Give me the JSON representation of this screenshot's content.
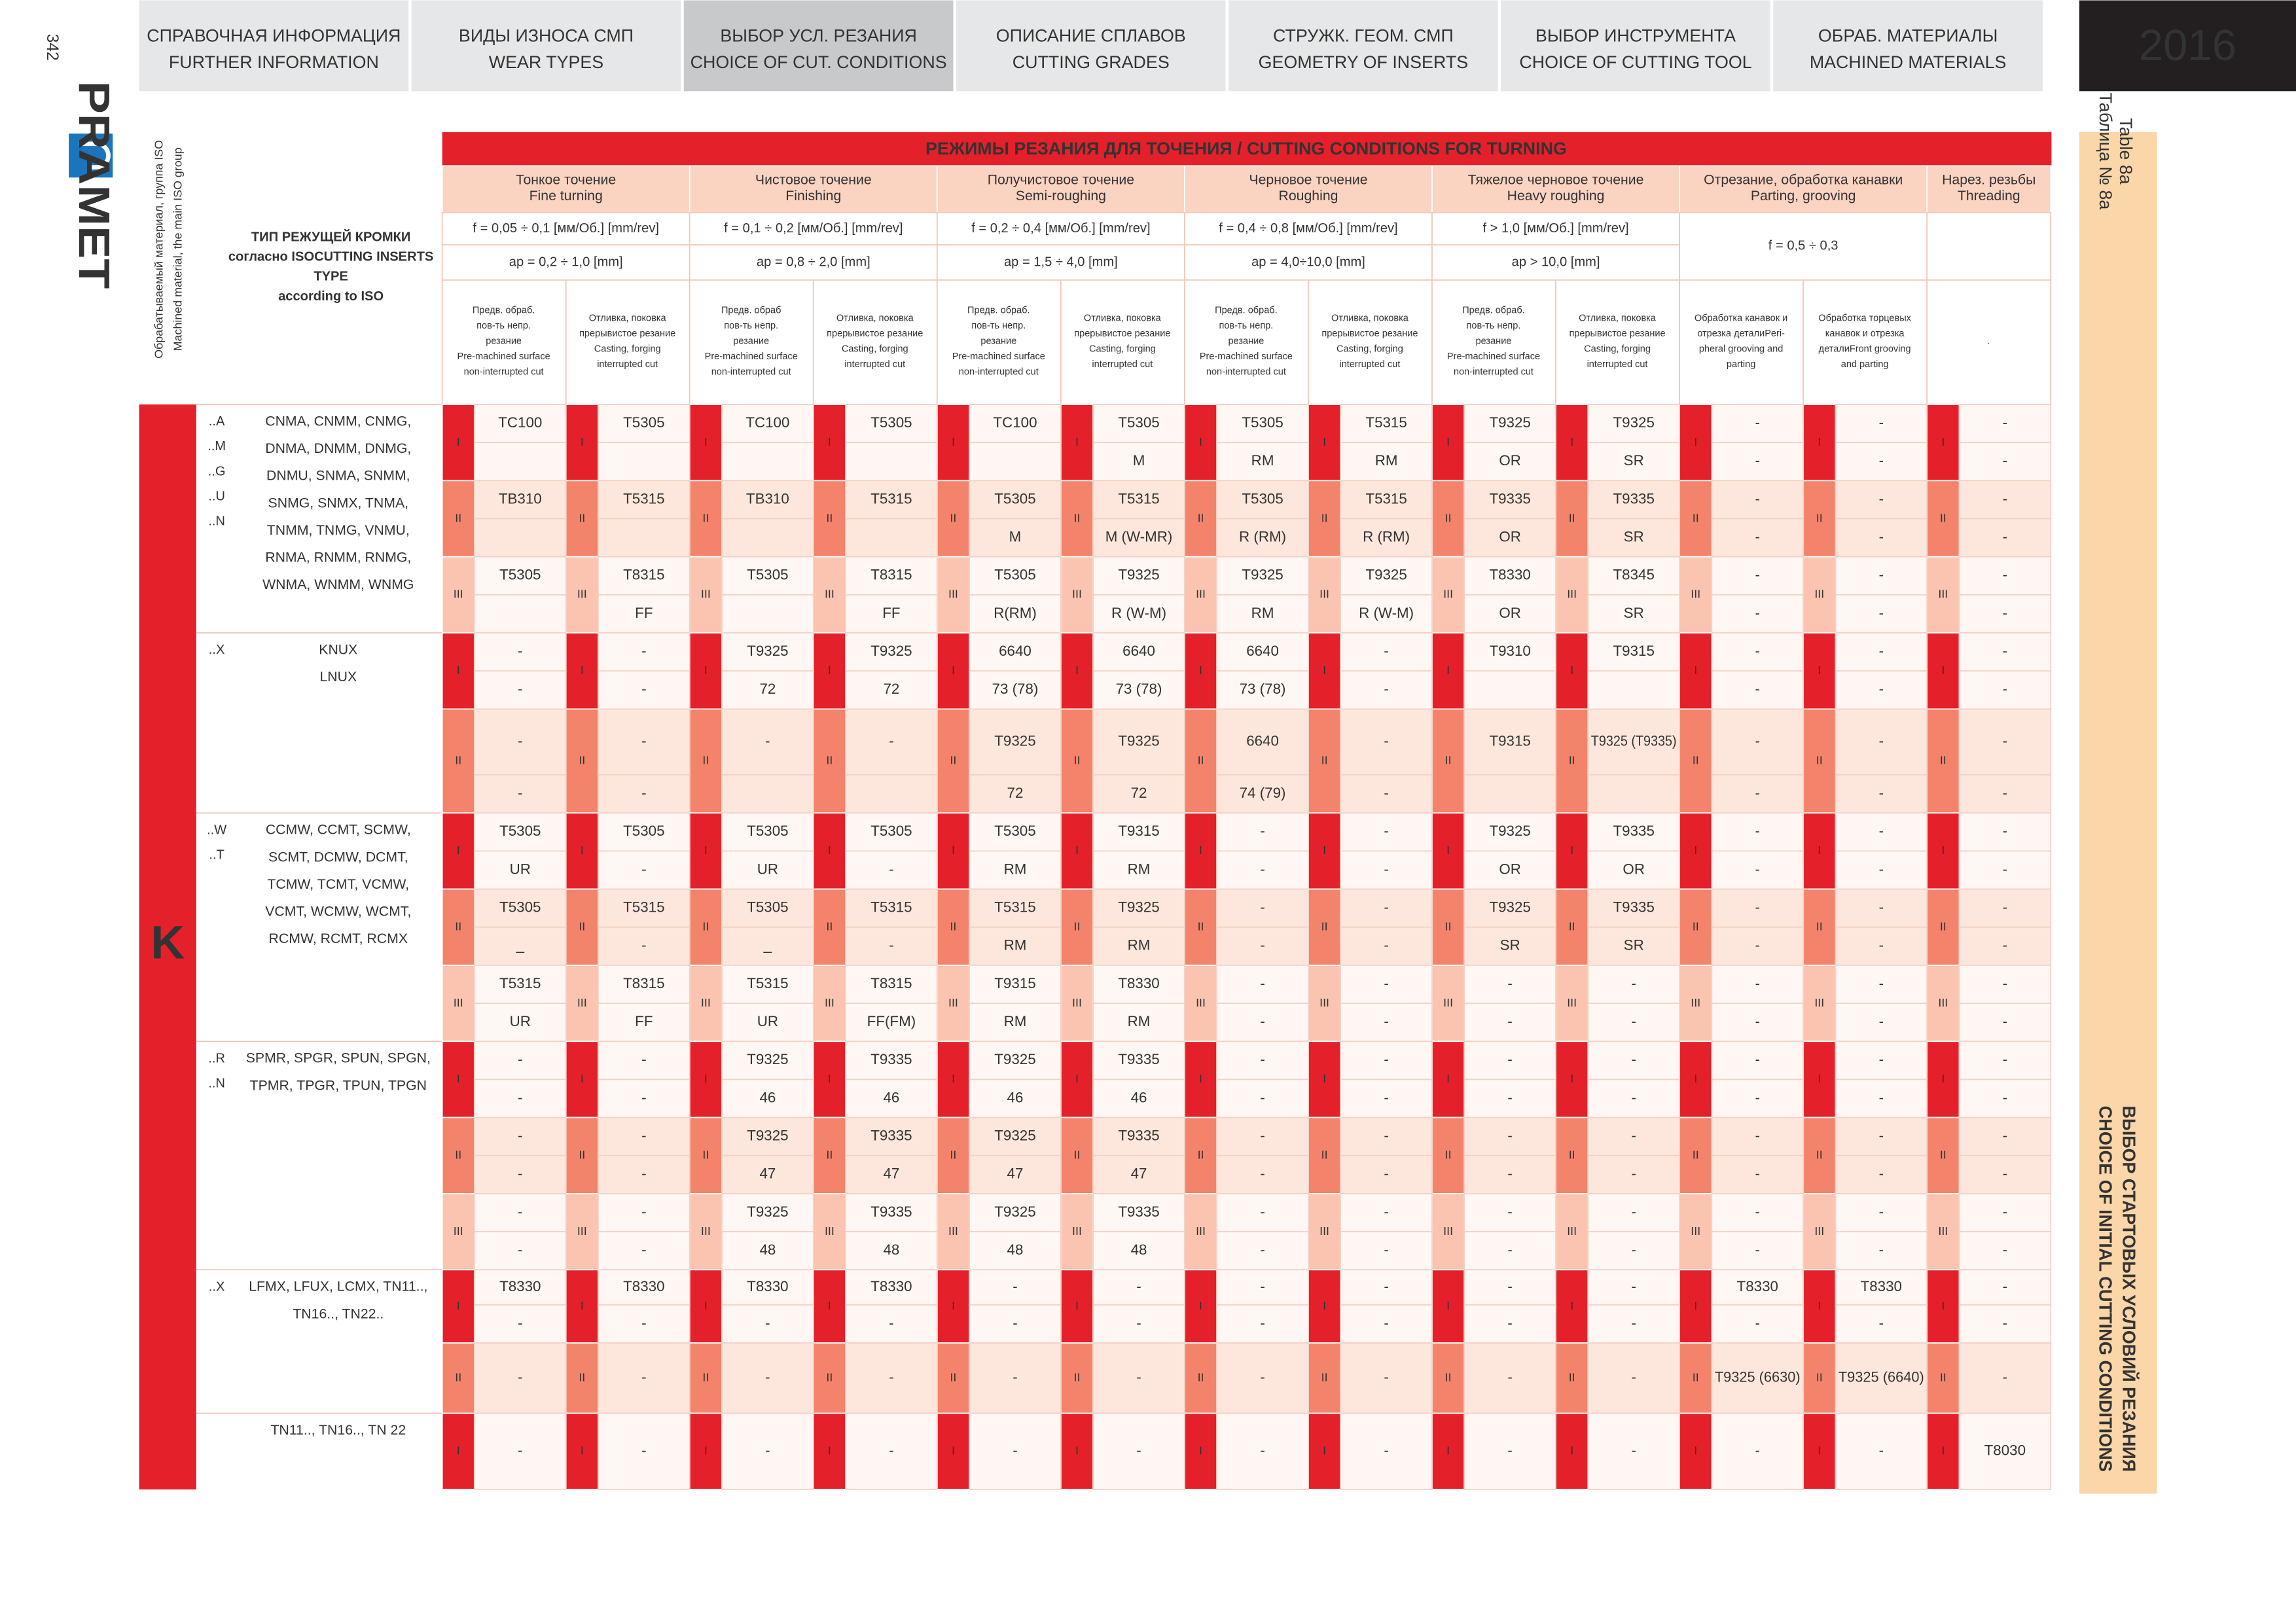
{
  "page_number": "342",
  "nav": [
    {
      "ru": "СПРАВОЧНАЯ ИНФОРМАЦИЯ",
      "en": "FURTHER INFORMATION"
    },
    {
      "ru": "ВИДЫ ИЗНОСА СМП",
      "en": "WEAR TYPES"
    },
    {
      "ru": "ВЫБОР УСЛ. РЕЗАНИЯ",
      "en": "CHOICE OF CUT. CONDITIONS",
      "active": true
    },
    {
      "ru": "ОПИСАНИЕ СПЛАВОВ",
      "en": "CUTTING GRADES"
    },
    {
      "ru": "СТРУЖК. ГЕОМ. СМП",
      "en": "GEOMETRY OF INSERTS"
    },
    {
      "ru": "ВЫБОР ИНСТРУМЕНТА",
      "en": "CHOICE OF CUTTING TOOL"
    },
    {
      "ru": "ОБРАБ. МАТЕРИАЛЫ",
      "en": "MACHINED MATERIALS"
    }
  ],
  "year": "2016",
  "logo": "PRAMET",
  "side_label": [
    "Обрабатываемый материал, группа ISO",
    "Machined material, the main ISO group"
  ],
  "type_header": [
    "ТИП РЕЖУЩЕЙ КРОМКИ",
    "согласно ISOCUTTING INSERTS",
    "TYPE",
    "according to ISO"
  ],
  "table_title": "РЕЖИМЫ РЕЗАНИЯ ДЛЯ ТОЧЕНИЯ / CUTTING CONDITIONS FOR TURNING",
  "table_label": [
    "Таблица № 8а",
    "Table 8a"
  ],
  "section_label": [
    "ВЫБОР СТАРТОВЫХ УСЛОВИЙ РЕЗАНИЯ",
    "CHOICE OF INITIAL CUTTING CONDITIONS"
  ],
  "operations": [
    {
      "ru": "Тонкое точение",
      "en": "Fine turning",
      "feed": "f = 0,05 ÷ 0,1 [мм/Об.] [mm/rev]",
      "depth": "ap = 0,2 ÷ 1,0 [mm]",
      "columns": [
        [
          "Предв. обраб.",
          "пов-ть непр.",
          "резание",
          "Pre-machined surface",
          "non-interrupted cut"
        ],
        [
          "Отливка, поковка",
          "прерывистое резание",
          "Casting, forging",
          "interrupted cut"
        ]
      ]
    },
    {
      "ru": "Чистовое точение",
      "en": "Finishing",
      "feed": "f = 0,1 ÷ 0,2 [мм/Об.] [mm/rev]",
      "depth": "ap = 0,8 ÷ 2,0 [mm]",
      "columns": [
        [
          "Предв. обраб",
          "пов-ть непр.",
          "резание",
          "Pre-machined surface",
          "non-interrupted cut"
        ],
        [
          "Отливка, поковка",
          "прерывистое резание",
          "Casting, forging",
          "interrupted cut"
        ]
      ]
    },
    {
      "ru": "Получистовое точение",
      "en": "Semi-roughing",
      "feed": "f = 0,2 ÷ 0,4 [мм/Об.] [mm/rev]",
      "depth": "ap = 1,5 ÷ 4,0 [mm]",
      "columns": [
        [
          "Предв. обраб.",
          "пов-ть непр.",
          "резание",
          "Pre-machined surface",
          "non-interrupted cut"
        ],
        [
          "Отливка, поковка",
          "прерывистое резание",
          "Casting, forging",
          "interrupted cut"
        ]
      ]
    },
    {
      "ru": "Черновое точение",
      "en": "Roughing",
      "feed": "f = 0,4 ÷ 0,8 [мм/Об.] [mm/rev]",
      "depth": "ap = 4,0÷10,0 [mm]",
      "columns": [
        [
          "Предв. обраб.",
          "пов-ть непр.",
          "резание",
          "Pre-machined surface",
          "non-interrupted cut"
        ],
        [
          "Отливка, поковка",
          "прерывистое резание",
          "Casting, forging",
          "interrupted cut"
        ]
      ]
    },
    {
      "ru": "Тяжелое черновое точение",
      "en": "Heavy roughing",
      "feed": "f > 1,0 [мм/Об.] [mm/rev]",
      "depth": "ap > 10,0 [mm]",
      "columns": [
        [
          "Предв. обраб.",
          "пов-ть непр.",
          "резание",
          "Pre-machined surface",
          "non-interrupted cut"
        ],
        [
          "Отливка, поковка",
          "прерывистое резание",
          "Casting, forging",
          "interrupted cut"
        ]
      ]
    },
    {
      "ru": "Отрезание, обработка канавки",
      "en": "Parting, grooving",
      "feed": "f = 0,5 ÷ 0,3",
      "columns": [
        [
          "Обработка канавок и",
          "отрезка деталиPeri-",
          "pheral grooving and",
          "parting"
        ],
        [
          "Обработка торцевых",
          "канавок и отрезка",
          "деталиFront grooving",
          "and parting"
        ]
      ]
    },
    {
      "ru": "Нарез. резьбы",
      "en": "Threading",
      "columns": [
        [
          "."
        ]
      ]
    }
  ],
  "material": "K",
  "groups": [
    {
      "suffixes": [
        "..A",
        "..M",
        "..G",
        "..U",
        "..N"
      ],
      "types": [
        "CNMA, CNMM, CNMG,",
        "DNMA, DNMM, DNMG,",
        "DNMU, SNMA, SNMM,",
        "SNMG, SNMX, TNMA,",
        "TNMM, TNMG, VNMU,",
        "RNMA, RNMM, RNMG,",
        "WNMA, WNMM, WNMG"
      ],
      "levels": [
        {
          "level": "I",
          "rows": [
            [
              "TC100",
              "T5305",
              "TC100",
              "T5305",
              "TC100",
              "T5305",
              "T5305",
              "T5315",
              "T9325",
              "T9325",
              "-",
              "-",
              "-"
            ],
            [
              null,
              null,
              null,
              null,
              null,
              "M",
              "RM",
              "RM",
              "OR",
              "SR",
              "-",
              "-",
              "-"
            ]
          ]
        },
        {
          "level": "II",
          "rows": [
            [
              "TB310",
              "T5315",
              "TB310",
              "T5315",
              "T5305",
              "T5315",
              "T5305",
              "T5315",
              "T9335",
              "T9335",
              "-",
              "-",
              "-"
            ],
            [
              null,
              null,
              null,
              null,
              "M",
              "M (W-MR)",
              "R (RM)",
              "R (RM)",
              "OR",
              "SR",
              "-",
              "-",
              "-"
            ]
          ]
        },
        {
          "level": "III",
          "rows": [
            [
              "T5305",
              "T8315",
              "T5305",
              "T8315",
              "T5305",
              "T9325",
              "T9325",
              "T9325",
              "T8330",
              "T8345",
              "-",
              "-",
              "-"
            ],
            [
              null,
              "FF",
              null,
              "FF",
              "R(RM)",
              "R (W-M)",
              "RM",
              "R (W-M)",
              "OR",
              "SR",
              "-",
              "-",
              "-"
            ]
          ]
        }
      ]
    },
    {
      "suffixes": [
        "..X"
      ],
      "types": [
        "KNUX",
        "LNUX"
      ],
      "levels": [
        {
          "level": "I",
          "rows": [
            [
              "-",
              "-",
              "T9325",
              "T9325",
              "6640",
              "6640",
              "6640",
              "-",
              "T9310",
              "T9315",
              "-",
              "-",
              "-"
            ],
            [
              "-",
              "-",
              "72",
              "72",
              "73 (78)",
              "73 (78)",
              "73 (78)",
              "-",
              null,
              null,
              "-",
              "-",
              "-"
            ]
          ]
        },
        {
          "level": "II",
          "rows": [
            [
              "-",
              "-",
              "-",
              "-",
              "T9325",
              "T9325",
              "6640",
              "-",
              "T9315",
              "T9325 (T9335)",
              "-",
              "-",
              "-"
            ],
            [
              "-",
              "-",
              null,
              null,
              "72",
              "72",
              "74 (79)",
              "-",
              null,
              null,
              "-",
              "-",
              "-"
            ]
          ]
        }
      ]
    },
    {
      "suffixes": [
        "..W",
        "..T"
      ],
      "types": [
        "CCMW, CCMT, SCMW,",
        "SCMT, DCMW, DCMT,",
        "TCMW, TCMT, VCMW,",
        "VCMT, WCMW, WCMT,",
        "RCMW, RCMT, RCMX"
      ],
      "levels": [
        {
          "level": "I",
          "rows": [
            [
              "T5305",
              "T5305",
              "T5305",
              "T5305",
              "T5305",
              "T9315",
              "-",
              "-",
              "T9325",
              "T9335",
              "-",
              "-",
              "-"
            ],
            [
              "UR",
              "-",
              "UR",
              "-",
              "RM",
              "RM",
              "-",
              "-",
              "OR",
              "OR",
              "-",
              "-",
              "-"
            ]
          ]
        },
        {
          "level": "II",
          "rows": [
            [
              "T5305",
              "T5315",
              "T5305",
              "T5315",
              "T5315",
              "T9325",
              "-",
              "-",
              "T9325",
              "T9335",
              "-",
              "-",
              "-"
            ],
            [
              "_",
              "-",
              "_",
              "-",
              "RM",
              "RM",
              "-",
              "-",
              "SR",
              "SR",
              "-",
              "-",
              "-"
            ]
          ]
        },
        {
          "level": "III",
          "rows": [
            [
              "T5315",
              "T8315",
              "T5315",
              "T8315",
              "T9315",
              "T8330",
              "-",
              "-",
              "-",
              "-",
              "-",
              "-",
              "-"
            ],
            [
              "UR",
              "FF",
              "UR",
              "FF(FM)",
              "RM",
              "RM",
              "-",
              "-",
              "-",
              "-",
              "-",
              "-",
              "-"
            ]
          ]
        }
      ]
    },
    {
      "suffixes": [
        "..R",
        "..N"
      ],
      "types": [
        "SPMR, SPGR, SPUN, SPGN,",
        "TPMR, TPGR, TPUN, TPGN"
      ],
      "levels": [
        {
          "level": "I",
          "rows": [
            [
              "-",
              "-",
              "T9325",
              "T9335",
              "T9325",
              "T9335",
              "-",
              "-",
              "-",
              "-",
              "-",
              "-",
              "-"
            ],
            [
              "-",
              "-",
              "46",
              "46",
              "46",
              "46",
              "-",
              "-",
              "-",
              "-",
              "-",
              "-",
              "-"
            ]
          ]
        },
        {
          "level": "II",
          "rows": [
            [
              "-",
              "-",
              "T9325",
              "T9335",
              "T9325",
              "T9335",
              "-",
              "-",
              "-",
              "-",
              "-",
              "-",
              "-"
            ],
            [
              "-",
              "-",
              "47",
              "47",
              "47",
              "47",
              "-",
              "-",
              "-",
              "-",
              "-",
              "-",
              "-"
            ]
          ]
        },
        {
          "level": "III",
          "rows": [
            [
              "-",
              "-",
              "T9325",
              "T9335",
              "T9325",
              "T9335",
              "-",
              "-",
              "-",
              "-",
              "-",
              "-",
              "-"
            ],
            [
              "-",
              "-",
              "48",
              "48",
              "48",
              "48",
              "-",
              "-",
              "-",
              "-",
              "-",
              "-",
              "-"
            ]
          ]
        }
      ]
    },
    {
      "suffixes": [
        "..X"
      ],
      "types": [
        "LFMX, LFUX, LCMX, TN11..,",
        "TN16.., TN22.."
      ],
      "levels": [
        {
          "level": "I",
          "rows": [
            [
              "T8330",
              "T8330",
              "T8330",
              "T8330",
              "-",
              "-",
              "-",
              "-",
              "-",
              "-",
              "T8330",
              "T8330",
              "-"
            ],
            [
              "-",
              "-",
              "-",
              "-",
              "-",
              "-",
              "-",
              "-",
              "-",
              "-",
              "-",
              "-",
              "-"
            ]
          ]
        },
        {
          "level": "II",
          "rows": [
            [
              "-",
              "-",
              "-",
              "-",
              "-",
              "-",
              "-",
              "-",
              "-",
              "-",
              "T9325 (6630)",
              "T9325 (6640)",
              "-"
            ]
          ]
        }
      ]
    },
    {
      "types": [
        "TN11.., TN16.., TN 22"
      ],
      "levels": [
        {
          "level": "I",
          "rows": [
            [
              "-",
              "-",
              "-",
              "-",
              "-",
              "-",
              "-",
              "-",
              "-",
              "-",
              "-",
              "-",
              "T8030"
            ]
          ]
        }
      ]
    }
  ]
}
